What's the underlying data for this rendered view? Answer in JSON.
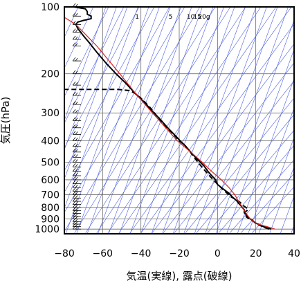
{
  "chart_data": {
    "type": "line",
    "title": "",
    "xlabel": "気温(実線), 露点(破線)",
    "ylabel": "気圧(hPa)",
    "xlim": [
      -80,
      40
    ],
    "ylim": [
      1050,
      100
    ],
    "y_scale": "log",
    "x_ticks": [
      -80,
      -60,
      -40,
      -20,
      0,
      20,
      40
    ],
    "x_tick_labels": [
      "−80",
      "−60",
      "−40",
      "−20",
      "0",
      "20",
      "40"
    ],
    "y_ticks": [
      100,
      200,
      300,
      400,
      500,
      600,
      700,
      800,
      900,
      1000
    ],
    "y_tick_labels": [
      "100",
      "200",
      "300",
      "400",
      "500",
      "600",
      "700",
      "800",
      "900",
      "1000"
    ],
    "mixing_ratio_labels": [
      {
        "text": "1",
        "x": -42
      },
      {
        "text": "5",
        "x": -24.5
      },
      {
        "text": "10",
        "x": -14
      },
      {
        "text": "15",
        "x": -10.5
      },
      {
        "text": "20g",
        "x": -7
      }
    ],
    "series": [
      {
        "style": "solid",
        "color": "#000000",
        "points": [
          [
            28,
            1000
          ],
          [
            24,
            975
          ],
          [
            22,
            955
          ],
          [
            20,
            940
          ],
          [
            19,
            925
          ],
          [
            18,
            910
          ],
          [
            17,
            900
          ],
          [
            16,
            880
          ],
          [
            15,
            860
          ],
          [
            14,
            845
          ],
          [
            14,
            820
          ],
          [
            13,
            800
          ],
          [
            12,
            780
          ],
          [
            11,
            765
          ],
          [
            10,
            745
          ],
          [
            8,
            720
          ],
          [
            6,
            690
          ],
          [
            3,
            660
          ],
          [
            0,
            630
          ],
          [
            -1,
            600
          ],
          [
            -3,
            575
          ],
          [
            -5,
            550
          ],
          [
            -7,
            520
          ],
          [
            -9,
            500
          ],
          [
            -11,
            480
          ],
          [
            -13,
            460
          ],
          [
            -15,
            440
          ],
          [
            -17,
            420
          ],
          [
            -19,
            405
          ],
          [
            -22,
            380
          ],
          [
            -26,
            350
          ],
          [
            -30,
            320
          ],
          [
            -34,
            295
          ],
          [
            -38,
            270
          ],
          [
            -43,
            245
          ],
          [
            -48,
            220
          ],
          [
            -53,
            200
          ],
          [
            -58,
            180
          ],
          [
            -63,
            160
          ],
          [
            -67,
            145
          ],
          [
            -70,
            135
          ],
          [
            -73,
            125
          ],
          [
            -74,
            120
          ],
          [
            -73,
            117
          ],
          [
            -70,
            115
          ],
          [
            -68,
            114
          ],
          [
            -66,
            113
          ],
          [
            -66,
            110
          ],
          [
            -68,
            108
          ],
          [
            -68,
            105
          ],
          [
            -69,
            102
          ],
          [
            -72,
            101
          ],
          [
            -75,
            100
          ]
        ]
      },
      {
        "style": "dashed",
        "color": "#000000",
        "points": [
          [
            27,
            1000
          ],
          [
            24,
            980
          ],
          [
            22,
            960
          ],
          [
            20,
            945
          ],
          [
            19,
            925
          ],
          [
            17,
            905
          ],
          [
            15,
            880
          ],
          [
            15,
            860
          ],
          [
            14,
            840
          ],
          [
            16,
            820
          ],
          [
            15,
            800
          ],
          [
            13,
            780
          ],
          [
            12,
            760
          ],
          [
            10,
            740
          ],
          [
            7,
            715
          ],
          [
            5,
            690
          ],
          [
            3,
            665
          ],
          [
            1,
            640
          ],
          [
            -1,
            615
          ],
          [
            -3,
            590
          ],
          [
            -5,
            565
          ],
          [
            -7,
            540
          ],
          [
            -9,
            515
          ],
          [
            -11,
            490
          ],
          [
            -13,
            465
          ],
          [
            -15,
            440
          ],
          [
            -17,
            420
          ],
          [
            -20,
            400
          ],
          [
            -23,
            375
          ],
          [
            -27,
            345
          ],
          [
            -31,
            315
          ],
          [
            -35,
            285
          ],
          [
            -39,
            262
          ],
          [
            -43,
            245
          ],
          [
            -46,
            238
          ],
          [
            -52,
            235
          ],
          [
            -80,
            235
          ]
        ]
      },
      {
        "style": "solid",
        "color": "#d62020",
        "points": [
          [
            30,
            1000
          ],
          [
            26,
            975
          ],
          [
            21,
            950
          ],
          [
            17,
            900
          ],
          [
            15,
            850
          ],
          [
            13,
            800
          ],
          [
            11,
            750
          ],
          [
            9,
            700
          ],
          [
            6,
            650
          ],
          [
            2,
            600
          ],
          [
            -3,
            550
          ],
          [
            -8,
            500
          ],
          [
            -14,
            450
          ],
          [
            -21,
            400
          ],
          [
            -27,
            350
          ],
          [
            -34,
            300
          ],
          [
            -42,
            250
          ],
          [
            -51,
            200
          ],
          [
            -63,
            150
          ],
          [
            -74,
            120
          ],
          [
            -81,
            110
          ],
          [
            -87,
            100
          ]
        ]
      }
    ],
    "wind_barbs": {
      "x": -72,
      "pressures": [
        1000,
        975,
        950,
        925,
        900,
        875,
        850,
        825,
        800,
        775,
        750,
        725,
        700,
        675,
        650,
        625,
        600,
        575,
        550,
        525,
        500,
        475,
        450,
        425,
        400,
        375,
        350,
        325,
        300,
        275,
        250,
        225,
        200,
        175,
        150,
        140,
        130,
        120,
        110,
        100
      ]
    }
  }
}
